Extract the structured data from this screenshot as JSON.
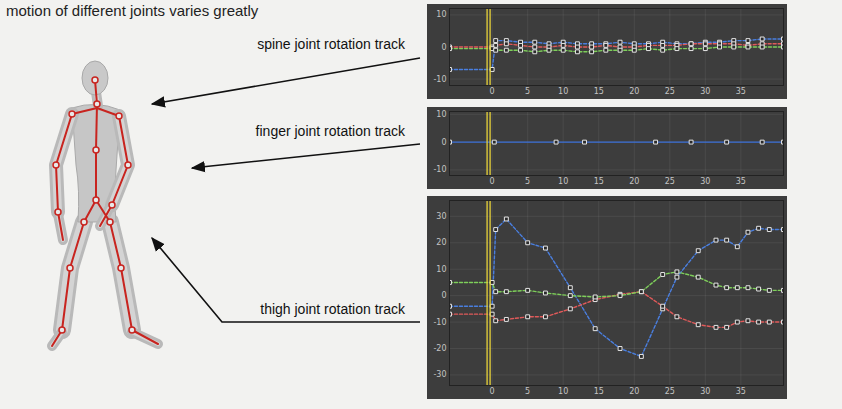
{
  "heading": "motion of different joints varies greatly",
  "labels": [
    "spine joint rotation track",
    "finger joint rotation track",
    "thigh joint rotation track"
  ],
  "chart_data": [
    {
      "type": "line",
      "xlim": [
        -6,
        41
      ],
      "xticks": [
        0,
        5,
        10,
        15,
        20,
        25,
        30,
        35
      ],
      "ylim": [
        -12,
        12
      ],
      "yticks": [
        -10,
        0,
        10
      ],
      "grid": true,
      "current_frame": -0.5,
      "x": [
        -6,
        0,
        0.5,
        2,
        4,
        6,
        8,
        10,
        12,
        14,
        16,
        18,
        20,
        22,
        24,
        26,
        28,
        30,
        32,
        34,
        36,
        38,
        41
      ],
      "series": [
        {
          "color": "#4a7fe0",
          "line_style": "dashed",
          "marker": "square",
          "values": [
            -7,
            -7,
            2,
            2,
            1.5,
            1.5,
            1,
            1.5,
            1,
            1,
            1,
            1.5,
            1,
            1,
            1.5,
            1,
            1,
            1.5,
            1.5,
            2,
            2,
            2.5,
            2.5
          ]
        },
        {
          "color": "#e05a5a",
          "line_style": "dashed",
          "marker": "square",
          "values": [
            0,
            0,
            0.5,
            1,
            0.5,
            0,
            0,
            0.5,
            0,
            0,
            0.5,
            0,
            0,
            0.5,
            0.5,
            0.5,
            1,
            1,
            1,
            1,
            0.5,
            1,
            1
          ]
        },
        {
          "color": "#7ecf5a",
          "line_style": "dashed",
          "marker": "square",
          "values": [
            -0.5,
            -0.5,
            -1,
            -1,
            -1,
            -1.5,
            -1,
            -1,
            -1.5,
            -1.5,
            -1,
            -1,
            -1,
            -0.5,
            -1,
            -0.5,
            -0.5,
            -0.5,
            0,
            0,
            0,
            0,
            0
          ]
        }
      ]
    },
    {
      "type": "line",
      "xlim": [
        -6,
        41
      ],
      "xticks": [
        0,
        5,
        10,
        15,
        20,
        25,
        30,
        35
      ],
      "ylim": [
        -12,
        11
      ],
      "yticks": [
        -10,
        0,
        10
      ],
      "grid": true,
      "current_frame": -0.5,
      "x": [
        -6,
        0.3,
        9,
        13,
        23,
        28,
        33,
        38,
        41
      ],
      "series": [
        {
          "color": "#3a6fd8",
          "line_style": "solid",
          "marker": "square",
          "values": [
            0,
            0,
            0,
            0,
            0,
            0,
            0,
            0,
            0
          ]
        }
      ]
    },
    {
      "type": "line",
      "xlim": [
        -6,
        41
      ],
      "xticks": [
        0,
        5,
        10,
        15,
        20,
        25,
        30,
        35
      ],
      "ylim": [
        -34,
        36
      ],
      "yticks": [
        -30,
        -20,
        -10,
        0,
        10,
        20,
        30
      ],
      "grid": true,
      "current_frame": -0.5,
      "x": [
        -6,
        0,
        0.5,
        2,
        5,
        7.5,
        11,
        14.5,
        18,
        21,
        24,
        26,
        29,
        31.5,
        33,
        34.5,
        36,
        37.5,
        39,
        41
      ],
      "series": [
        {
          "color": "#4a7fe0",
          "line_style": "dashed",
          "marker": "square",
          "values": [
            -4,
            -4,
            25,
            29,
            20,
            18,
            3,
            -12.5,
            -20,
            -23,
            -5,
            7,
            17,
            21,
            21,
            18.5,
            24,
            25.5,
            25,
            25
          ]
        },
        {
          "color": "#e05a5a",
          "line_style": "dashed",
          "marker": "square",
          "values": [
            -7,
            -7,
            -9.5,
            -9,
            -8,
            -8,
            -5,
            -1.5,
            0.5,
            1.5,
            -4,
            -8,
            -11,
            -12,
            -12,
            -10,
            -9.5,
            -10,
            -10,
            -10
          ]
        },
        {
          "color": "#7ecf5a",
          "line_style": "dashed",
          "marker": "square",
          "values": [
            5,
            5,
            1.5,
            1.5,
            2,
            1,
            0,
            -0.5,
            0,
            1.5,
            8,
            9,
            7,
            4,
            3,
            3,
            3,
            2.5,
            2,
            2
          ]
        }
      ]
    }
  ]
}
